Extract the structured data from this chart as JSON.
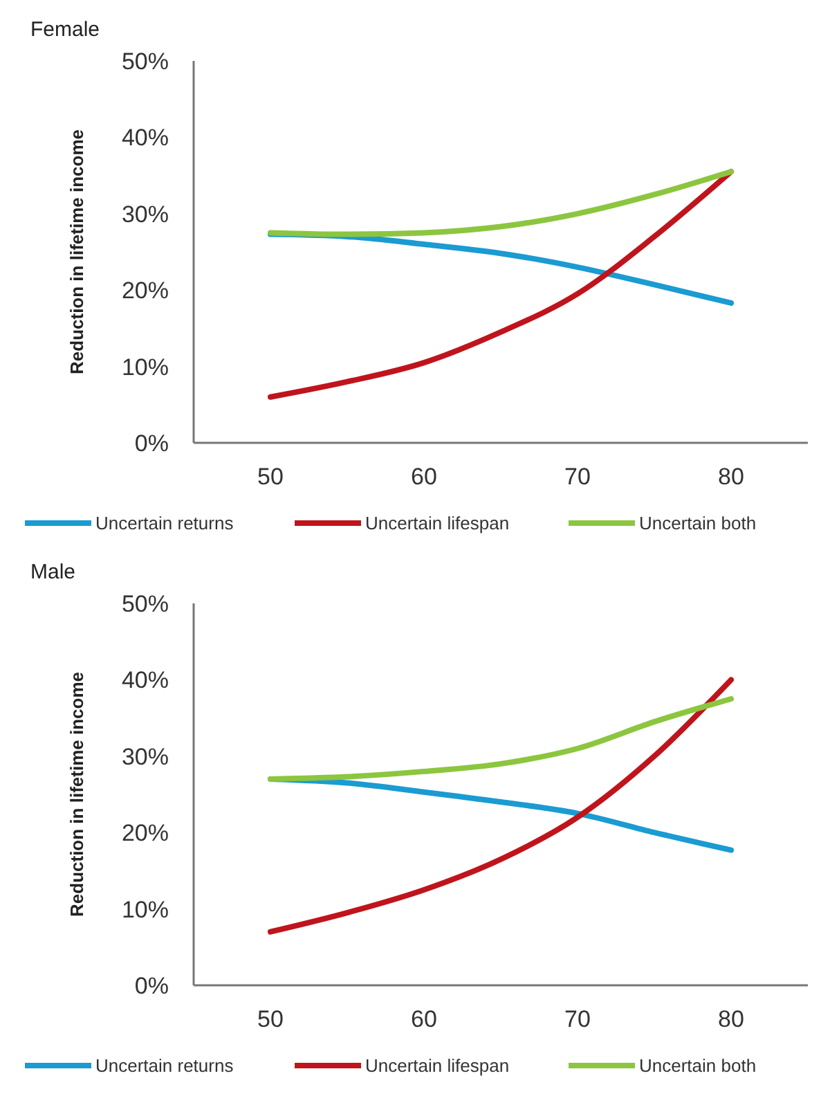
{
  "chart_data": [
    {
      "type": "line",
      "title": "Female",
      "ylabel": "Reduction in lifetime income",
      "x": [
        50,
        55,
        60,
        65,
        70,
        75,
        80
      ],
      "xlim": [
        45,
        85
      ],
      "xticks": [
        50,
        60,
        70,
        80
      ],
      "ylim": [
        0,
        50
      ],
      "yticks": [
        {
          "value": 0,
          "label": "0%"
        },
        {
          "value": 10,
          "label": "10%"
        },
        {
          "value": 20,
          "label": "20%"
        },
        {
          "value": 30,
          "label": "30%"
        },
        {
          "value": 40,
          "label": "40%"
        },
        {
          "value": 50,
          "label": "50%"
        }
      ],
      "grid": false,
      "legend": "bottom",
      "marker": "none",
      "line_style": "solid",
      "series": [
        {
          "name": "Uncertain returns",
          "color": "#1a9bd2",
          "values": [
            27.3,
            27,
            26,
            24.8,
            23,
            20.7,
            18.3
          ]
        },
        {
          "name": "Uncertain lifespan",
          "color": "#c0141c",
          "values": [
            6,
            8,
            10.5,
            14.5,
            19.5,
            27,
            35.5
          ]
        },
        {
          "name": "Uncertain both",
          "color": "#8cc63f",
          "values": [
            27.5,
            27.3,
            27.5,
            28.3,
            30,
            32.5,
            35.5
          ]
        }
      ]
    },
    {
      "type": "line",
      "title": "Male",
      "ylabel": "Reduction in lifetime income",
      "x": [
        50,
        55,
        60,
        65,
        70,
        75,
        80
      ],
      "xlim": [
        45,
        85
      ],
      "xticks": [
        50,
        60,
        70,
        80
      ],
      "ylim": [
        0,
        50
      ],
      "yticks": [
        {
          "value": 0,
          "label": "0%"
        },
        {
          "value": 10,
          "label": "10%"
        },
        {
          "value": 20,
          "label": "20%"
        },
        {
          "value": 30,
          "label": "30%"
        },
        {
          "value": 40,
          "label": "40%"
        },
        {
          "value": 50,
          "label": "50%"
        }
      ],
      "grid": false,
      "legend": "bottom",
      "marker": "none",
      "line_style": "solid",
      "series": [
        {
          "name": "Uncertain returns",
          "color": "#1a9bd2",
          "values": [
            27,
            26.5,
            25.3,
            24,
            22.5,
            20,
            17.7
          ]
        },
        {
          "name": "Uncertain lifespan",
          "color": "#c0141c",
          "values": [
            7,
            9.5,
            12.5,
            16.5,
            22,
            30,
            40
          ]
        },
        {
          "name": "Uncertain both",
          "color": "#8cc63f",
          "values": [
            27,
            27.3,
            28,
            29,
            31,
            34.5,
            37.5
          ]
        }
      ]
    }
  ]
}
